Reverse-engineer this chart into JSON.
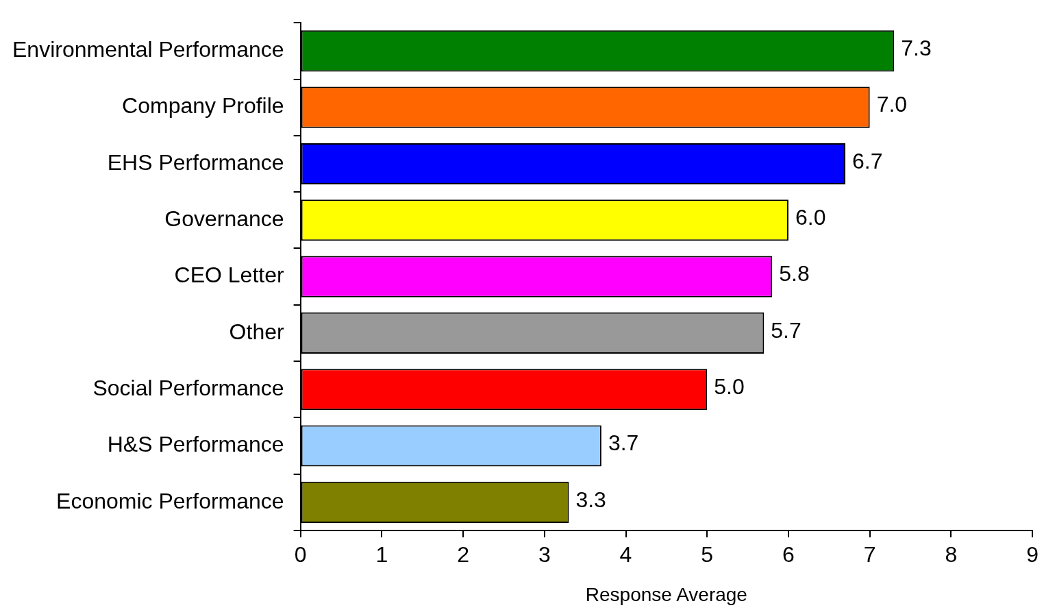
{
  "chart_data": {
    "type": "bar",
    "orientation": "horizontal",
    "xlabel": "Response Average",
    "categories": [
      "Environmental Performance",
      "Company Profile",
      "EHS Performance",
      "Governance",
      "CEO Letter",
      "Other",
      "Social Performance",
      "H&S Performance",
      "Economic Performance"
    ],
    "values": [
      7.3,
      7.0,
      6.7,
      6.0,
      5.8,
      5.7,
      5.0,
      3.7,
      3.3
    ],
    "colors": [
      "#008000",
      "#ff6600",
      "#0000ff",
      "#ffff00",
      "#ff00ff",
      "#999999",
      "#ff0000",
      "#99ccff",
      "#808000"
    ],
    "value_labels": [
      "7.3",
      "7.0",
      "6.7",
      "6.0",
      "5.8",
      "5.7",
      "5.0",
      "3.7",
      "3.3"
    ],
    "xlim": [
      0,
      9
    ],
    "xticks": [
      0,
      1,
      2,
      3,
      4,
      5,
      6,
      7,
      8,
      9
    ],
    "grid": false,
    "legend": false
  }
}
